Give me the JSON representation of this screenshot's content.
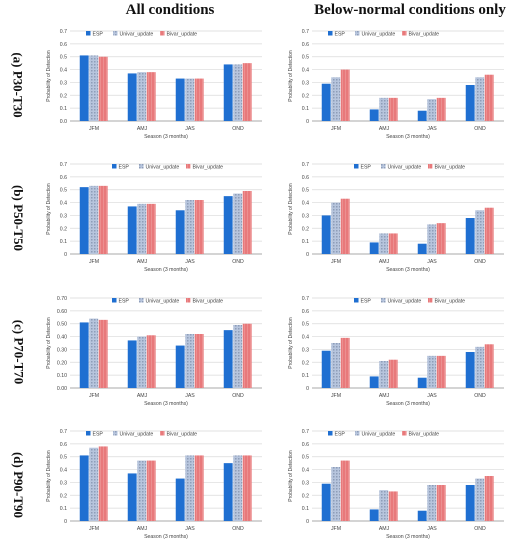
{
  "column_titles": [
    "All conditions",
    "Below-normal conditions only"
  ],
  "row_labels": [
    "(a) P30-T30",
    "(b) P50-T50",
    "(c) P70-T70",
    "(d) P90-T90"
  ],
  "colors": {
    "ESP": "#1f6fd1",
    "Univar_update": "#b7c5dd",
    "Bivar_update": "#e8797b",
    "grid": "#d9d9d9"
  },
  "chart_data": [
    {
      "type": "bar",
      "panel": "a-all",
      "categories": [
        "JFM",
        "AMJ",
        "JAS",
        "OND"
      ],
      "series": [
        {
          "name": "ESP",
          "values": [
            0.51,
            0.37,
            0.33,
            0.44
          ]
        },
        {
          "name": "Univar_update",
          "values": [
            0.51,
            0.38,
            0.33,
            0.44
          ]
        },
        {
          "name": "Bivar_update",
          "values": [
            0.5,
            0.38,
            0.33,
            0.45
          ]
        }
      ],
      "xlabel": "Season (3 months)",
      "ylabel": "Probability of Detection",
      "ylim": [
        0,
        0.7
      ],
      "yticks": [
        "0.0",
        "0.1",
        "0.2",
        "0.3",
        "0.4",
        "0.5",
        "0.6",
        "0.7"
      ],
      "legend": "top-left",
      "grid": true
    },
    {
      "type": "bar",
      "panel": "a-below",
      "categories": [
        "JFM",
        "AMJ",
        "JAS",
        "OND"
      ],
      "series": [
        {
          "name": "ESP",
          "values": [
            0.29,
            0.09,
            0.08,
            0.28
          ]
        },
        {
          "name": "Univar_update",
          "values": [
            0.34,
            0.18,
            0.17,
            0.34
          ]
        },
        {
          "name": "Bivar_update",
          "values": [
            0.4,
            0.18,
            0.18,
            0.36
          ]
        }
      ],
      "xlabel": "Season (3 months)",
      "ylabel": "Probability of Detection",
      "ylim": [
        0,
        0.7
      ],
      "yticks": [
        "0",
        "0.1",
        "0.2",
        "0.3",
        "0.4",
        "0.5",
        "0.6",
        "0.7"
      ],
      "legend": "top-left",
      "grid": true
    },
    {
      "type": "bar",
      "panel": "b-all",
      "categories": [
        "JFM",
        "AMJ",
        "JAS",
        "OND"
      ],
      "series": [
        {
          "name": "ESP",
          "values": [
            0.52,
            0.37,
            0.34,
            0.45
          ]
        },
        {
          "name": "Univar_update",
          "values": [
            0.53,
            0.39,
            0.42,
            0.47
          ]
        },
        {
          "name": "Bivar_update",
          "values": [
            0.53,
            0.39,
            0.42,
            0.49
          ]
        }
      ],
      "xlabel": "Season (3 months)",
      "ylabel": "Probability of Detection",
      "ylim": [
        0,
        0.7
      ],
      "yticks": [
        "0",
        "0.1",
        "0.2",
        "0.3",
        "0.4",
        "0.5",
        "0.6",
        "0.7"
      ],
      "legend": "top-right",
      "grid": true
    },
    {
      "type": "bar",
      "panel": "b-below",
      "categories": [
        "JFM",
        "AMJ",
        "JAS",
        "OND"
      ],
      "series": [
        {
          "name": "ESP",
          "values": [
            0.3,
            0.09,
            0.08,
            0.28
          ]
        },
        {
          "name": "Univar_update",
          "values": [
            0.4,
            0.16,
            0.23,
            0.34
          ]
        },
        {
          "name": "Bivar_update",
          "values": [
            0.43,
            0.16,
            0.24,
            0.36
          ]
        }
      ],
      "xlabel": "Season (3 months)",
      "ylabel": "Probability of Detection",
      "ylim": [
        0,
        0.7
      ],
      "yticks": [
        "0",
        "0.1",
        "0.2",
        "0.3",
        "0.4",
        "0.5",
        "0.6",
        "0.7"
      ],
      "legend": "top-right",
      "grid": true
    },
    {
      "type": "bar",
      "panel": "c-all",
      "categories": [
        "JFM",
        "AMJ",
        "JAS",
        "OND"
      ],
      "series": [
        {
          "name": "ESP",
          "values": [
            0.51,
            0.37,
            0.33,
            0.45
          ]
        },
        {
          "name": "Univar_update",
          "values": [
            0.54,
            0.4,
            0.42,
            0.49
          ]
        },
        {
          "name": "Bivar_update",
          "values": [
            0.53,
            0.41,
            0.42,
            0.5
          ]
        }
      ],
      "xlabel": "Season (3 months)",
      "ylabel": "Probability of Detection",
      "ylim": [
        0,
        0.7
      ],
      "yticks": [
        "0.00",
        "0.10",
        "0.20",
        "0.30",
        "0.40",
        "0.50",
        "0.60",
        "0.70"
      ],
      "legend": "top-right",
      "grid": true
    },
    {
      "type": "bar",
      "panel": "c-below",
      "categories": [
        "JFM",
        "AMJ",
        "JAS",
        "OND"
      ],
      "series": [
        {
          "name": "ESP",
          "values": [
            0.29,
            0.09,
            0.08,
            0.28
          ]
        },
        {
          "name": "Univar_update",
          "values": [
            0.35,
            0.21,
            0.25,
            0.32
          ]
        },
        {
          "name": "Bivar_update",
          "values": [
            0.39,
            0.22,
            0.25,
            0.34
          ]
        }
      ],
      "xlabel": "Season (3 months)",
      "ylabel": "Probability of Detection",
      "ylim": [
        0,
        0.7
      ],
      "yticks": [
        "0",
        "0.1",
        "0.2",
        "0.3",
        "0.4",
        "0.5",
        "0.6",
        "0.7"
      ],
      "legend": "top-right",
      "grid": true
    },
    {
      "type": "bar",
      "panel": "d-all",
      "categories": [
        "JFM",
        "AMJ",
        "JAS",
        "OND"
      ],
      "series": [
        {
          "name": "ESP",
          "values": [
            0.51,
            0.37,
            0.33,
            0.45
          ]
        },
        {
          "name": "Univar_update",
          "values": [
            0.57,
            0.47,
            0.51,
            0.51
          ]
        },
        {
          "name": "Bivar_update",
          "values": [
            0.58,
            0.47,
            0.51,
            0.51
          ]
        }
      ],
      "xlabel": "Season (3 months)",
      "ylabel": "Probability of Detection",
      "ylim": [
        0,
        0.7
      ],
      "yticks": [
        "0",
        "0.1",
        "0.2",
        "0.3",
        "0.4",
        "0.5",
        "0.6",
        "0.7"
      ],
      "legend": "top-left",
      "grid": true
    },
    {
      "type": "bar",
      "panel": "d-below",
      "categories": [
        "JFM",
        "AMJ",
        "JAS",
        "OND"
      ],
      "series": [
        {
          "name": "ESP",
          "values": [
            0.29,
            0.09,
            0.08,
            0.28
          ]
        },
        {
          "name": "Univar_update",
          "values": [
            0.42,
            0.24,
            0.28,
            0.33
          ]
        },
        {
          "name": "Bivar_update",
          "values": [
            0.47,
            0.23,
            0.28,
            0.35
          ]
        }
      ],
      "xlabel": "Season (3 months)",
      "ylabel": "Probability of Detection",
      "ylim": [
        0,
        0.7
      ],
      "yticks": [
        "0",
        "0.1",
        "0.2",
        "0.3",
        "0.4",
        "0.5",
        "0.6",
        "0.7"
      ],
      "legend": "top-left",
      "grid": true
    }
  ]
}
